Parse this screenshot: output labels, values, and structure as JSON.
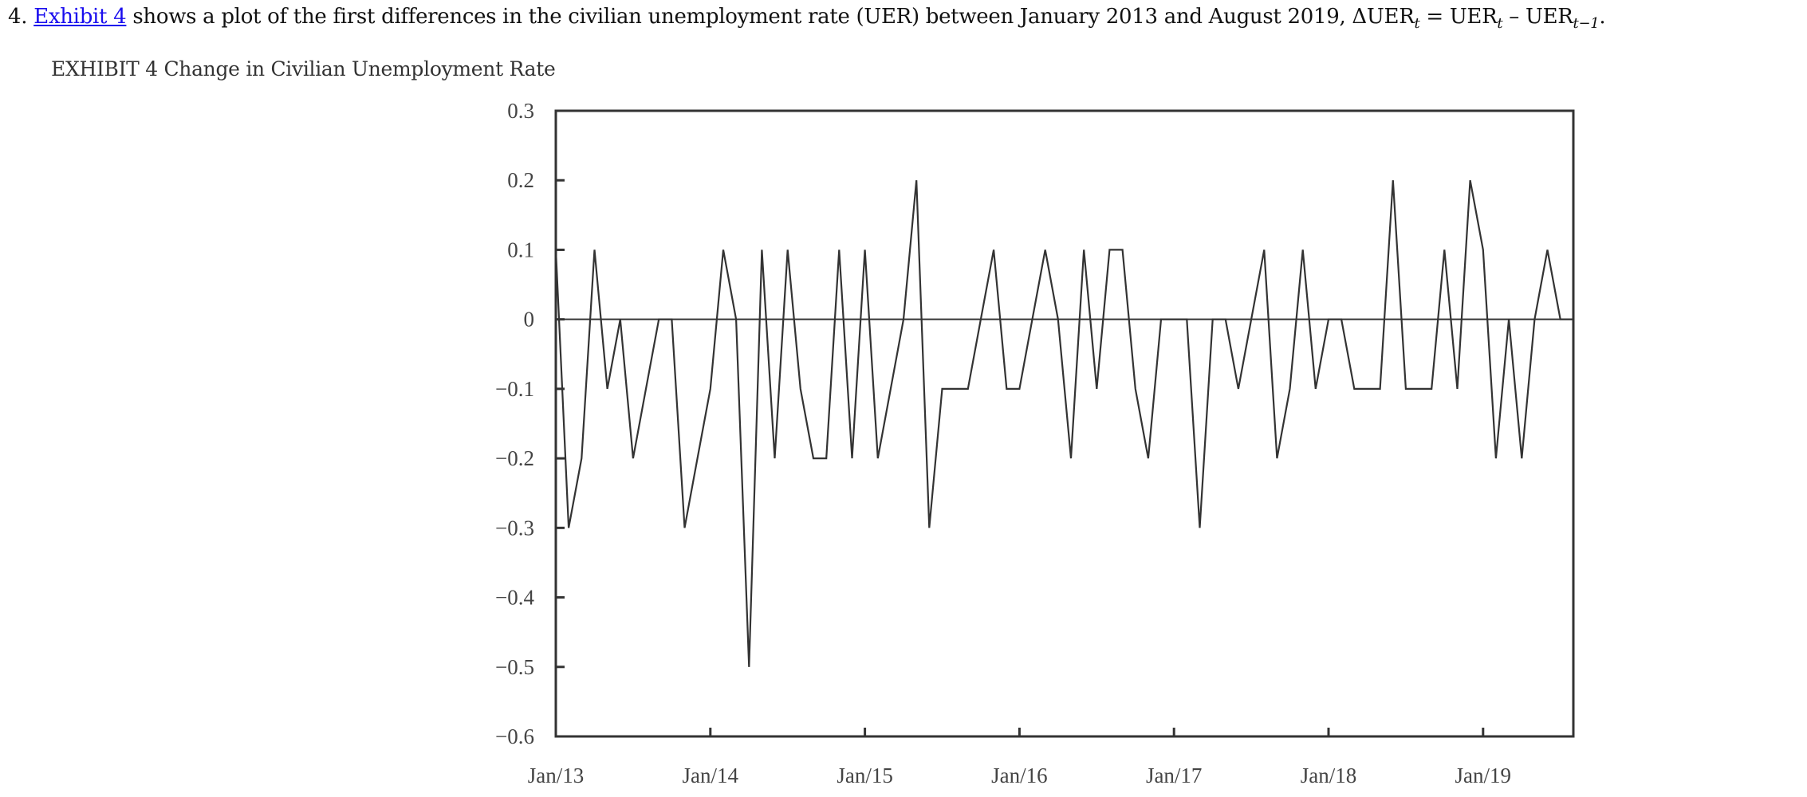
{
  "question": {
    "number": "4.",
    "link_text": "Exhibit 4",
    "text": " shows a plot of the first differences in the civilian unemployment rate (UER) between January 2013 and August 2019, ",
    "formula_lhs": "ΔUER",
    "sub_t": "t",
    "equals": " = UER",
    "minus": " – UER",
    "sub_t_minus_1": "t−1",
    "end": ".",
    "link_color": "#1a0dee"
  },
  "caption": "EXHIBIT 4 Change in Civilian Unemployment Rate",
  "chart_data": {
    "type": "line",
    "title": "",
    "xlabel": "",
    "ylabel": "",
    "ylim": [
      -0.6,
      0.3
    ],
    "yticks": [
      "0.3",
      "0.2",
      "0.1",
      "0",
      "−0.1",
      "−0.2",
      "−0.3",
      "−0.4",
      "−0.5",
      "−0.6"
    ],
    "ytick_values": [
      0.3,
      0.2,
      0.1,
      0,
      -0.1,
      -0.2,
      -0.3,
      -0.4,
      -0.5,
      -0.6
    ],
    "xticks": [
      "Jan/13",
      "Jan/14",
      "Jan/15",
      "Jan/16",
      "Jan/17",
      "Jan/18",
      "Jan/19"
    ],
    "x_range": [
      "Jan 2013",
      "Aug 2019"
    ],
    "frequency": "monthly",
    "zero_line": true,
    "grid": false,
    "line_color": "#333333",
    "values": [
      0.1,
      -0.3,
      -0.2,
      0.1,
      -0.1,
      0,
      -0.2,
      -0.1,
      0,
      0,
      -0.3,
      -0.2,
      -0.1,
      0.1,
      0,
      -0.5,
      0.1,
      -0.2,
      0.1,
      -0.1,
      -0.2,
      -0.2,
      0.1,
      -0.2,
      0.1,
      -0.2,
      -0.1,
      0,
      0.2,
      -0.3,
      -0.1,
      -0.1,
      -0.1,
      0,
      0.1,
      -0.1,
      -0.1,
      0,
      0.1,
      0,
      -0.2,
      0.1,
      -0.1,
      0.1,
      0.1,
      -0.1,
      -0.2,
      0,
      0,
      0,
      -0.3,
      0,
      0,
      -0.1,
      0,
      0.1,
      -0.2,
      -0.1,
      0.1,
      -0.1,
      0,
      0,
      -0.1,
      -0.1,
      -0.1,
      0.2,
      -0.1,
      -0.1,
      -0.1,
      0.1,
      -0.1,
      0.2,
      0.1,
      -0.2,
      0,
      -0.2,
      0,
      0.1,
      0,
      0
    ]
  }
}
